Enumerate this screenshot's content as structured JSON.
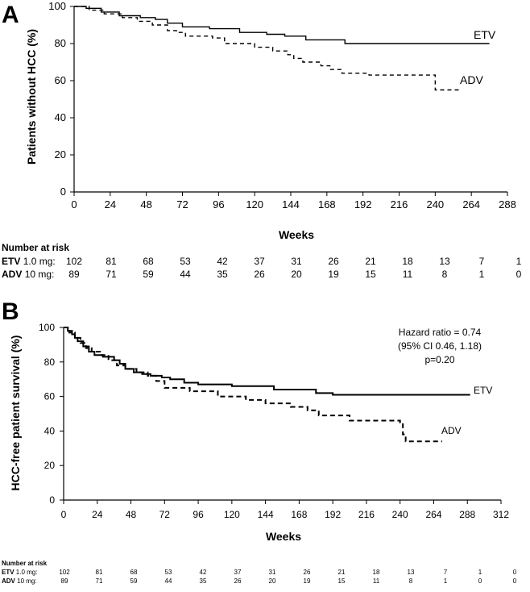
{
  "chart_data": [
    {
      "panel": "A",
      "type": "line",
      "title": "",
      "xlabel": "Weeks",
      "ylabel": "Patients without HCC (%)",
      "xlim": [
        0,
        288
      ],
      "ylim": [
        0,
        100
      ],
      "xticks": [
        0,
        24,
        48,
        72,
        96,
        120,
        144,
        168,
        192,
        216,
        240,
        264,
        288
      ],
      "yticks": [
        0,
        20,
        40,
        60,
        80,
        100
      ],
      "series": [
        {
          "name": "ETV",
          "line_style": "solid",
          "points": [
            [
              0,
              100
            ],
            [
              8,
              99
            ],
            [
              18,
              97
            ],
            [
              30,
              95
            ],
            [
              44,
              94
            ],
            [
              54,
              93
            ],
            [
              62,
              91
            ],
            [
              72,
              89
            ],
            [
              90,
              88
            ],
            [
              110,
              86
            ],
            [
              128,
              85
            ],
            [
              140,
              84
            ],
            [
              154,
              82
            ],
            [
              180,
              80
            ],
            [
              276,
              80
            ]
          ]
        },
        {
          "name": "ADV",
          "line_style": "dashed",
          "points": [
            [
              0,
              100
            ],
            [
              10,
              98
            ],
            [
              20,
              96
            ],
            [
              32,
              94
            ],
            [
              42,
              92
            ],
            [
              52,
              90
            ],
            [
              62,
              87
            ],
            [
              68,
              86
            ],
            [
              74,
              84
            ],
            [
              92,
              83
            ],
            [
              100,
              80
            ],
            [
              120,
              78
            ],
            [
              132,
              76
            ],
            [
              142,
              74
            ],
            [
              146,
              72
            ],
            [
              152,
              70
            ],
            [
              164,
              68
            ],
            [
              170,
              66
            ],
            [
              178,
              64
            ],
            [
              196,
              63
            ],
            [
              238,
              63
            ],
            [
              240,
              55
            ],
            [
              256,
              55
            ]
          ]
        }
      ],
      "risk_table": {
        "title": "Number at risk",
        "rows": [
          {
            "arm": "ETV",
            "dose": "1.0 mg:",
            "values": [
              "102",
              "81",
              "68",
              "53",
              "42",
              "37",
              "31",
              "26",
              "21",
              "18",
              "13",
              "7",
              "1"
            ]
          },
          {
            "arm": "ADV",
            "dose": "10 mg:",
            "values": [
              "89",
              "71",
              "59",
              "44",
              "35",
              "26",
              "20",
              "19",
              "15",
              "11",
              "8",
              "1",
              "0"
            ]
          }
        ]
      }
    },
    {
      "panel": "B",
      "type": "line",
      "title": "",
      "xlabel": "Weeks",
      "ylabel": "HCC-free patient survival (%)",
      "xlim": [
        0,
        312
      ],
      "ylim": [
        0,
        100
      ],
      "xticks": [
        0,
        24,
        48,
        72,
        96,
        120,
        144,
        168,
        192,
        216,
        240,
        264,
        288,
        312
      ],
      "yticks": [
        0,
        20,
        40,
        60,
        80,
        100
      ],
      "annotation": [
        "Hazard ratio = 0.74",
        "(95% CI 0.46, 1.18)",
        "p=0.20"
      ],
      "series": [
        {
          "name": "ETV",
          "line_style": "solid",
          "points": [
            [
              0,
              100
            ],
            [
              3,
              98
            ],
            [
              6,
              96
            ],
            [
              8,
              94
            ],
            [
              10,
              92
            ],
            [
              14,
              89
            ],
            [
              18,
              86
            ],
            [
              22,
              84
            ],
            [
              28,
              83
            ],
            [
              36,
              81
            ],
            [
              40,
              79
            ],
            [
              44,
              76
            ],
            [
              50,
              74
            ],
            [
              56,
              73
            ],
            [
              62,
              72
            ],
            [
              70,
              71
            ],
            [
              76,
              70
            ],
            [
              86,
              68
            ],
            [
              96,
              67
            ],
            [
              120,
              66
            ],
            [
              150,
              64
            ],
            [
              180,
              62
            ],
            [
              192,
              61
            ],
            [
              290,
              61
            ]
          ]
        },
        {
          "name": "ADV",
          "line_style": "dashed",
          "points": [
            [
              0,
              100
            ],
            [
              4,
              97
            ],
            [
              8,
              94
            ],
            [
              12,
              91
            ],
            [
              16,
              88
            ],
            [
              20,
              86
            ],
            [
              26,
              84
            ],
            [
              32,
              81
            ],
            [
              38,
              78
            ],
            [
              44,
              76
            ],
            [
              52,
              74
            ],
            [
              60,
              72
            ],
            [
              66,
              69
            ],
            [
              72,
              65
            ],
            [
              90,
              63
            ],
            [
              110,
              60
            ],
            [
              130,
              58
            ],
            [
              144,
              56
            ],
            [
              162,
              54
            ],
            [
              174,
              52
            ],
            [
              182,
              49
            ],
            [
              204,
              46
            ],
            [
              240,
              45
            ],
            [
              242,
              38
            ],
            [
              244,
              34
            ],
            [
              270,
              34
            ]
          ]
        }
      ],
      "risk_table": {
        "title": "Number at risk",
        "rows": [
          {
            "arm": "ETV",
            "dose": "1.0 mg:",
            "values": [
              "102",
              "81",
              "68",
              "53",
              "42",
              "37",
              "31",
              "26",
              "21",
              "18",
              "13",
              "7",
              "1",
              "0"
            ]
          },
          {
            "arm": "ADV",
            "dose": "10 mg:",
            "values": [
              "89",
              "71",
              "59",
              "44",
              "35",
              "26",
              "20",
              "19",
              "15",
              "11",
              "8",
              "1",
              "0",
              "0"
            ]
          }
        ]
      }
    }
  ]
}
